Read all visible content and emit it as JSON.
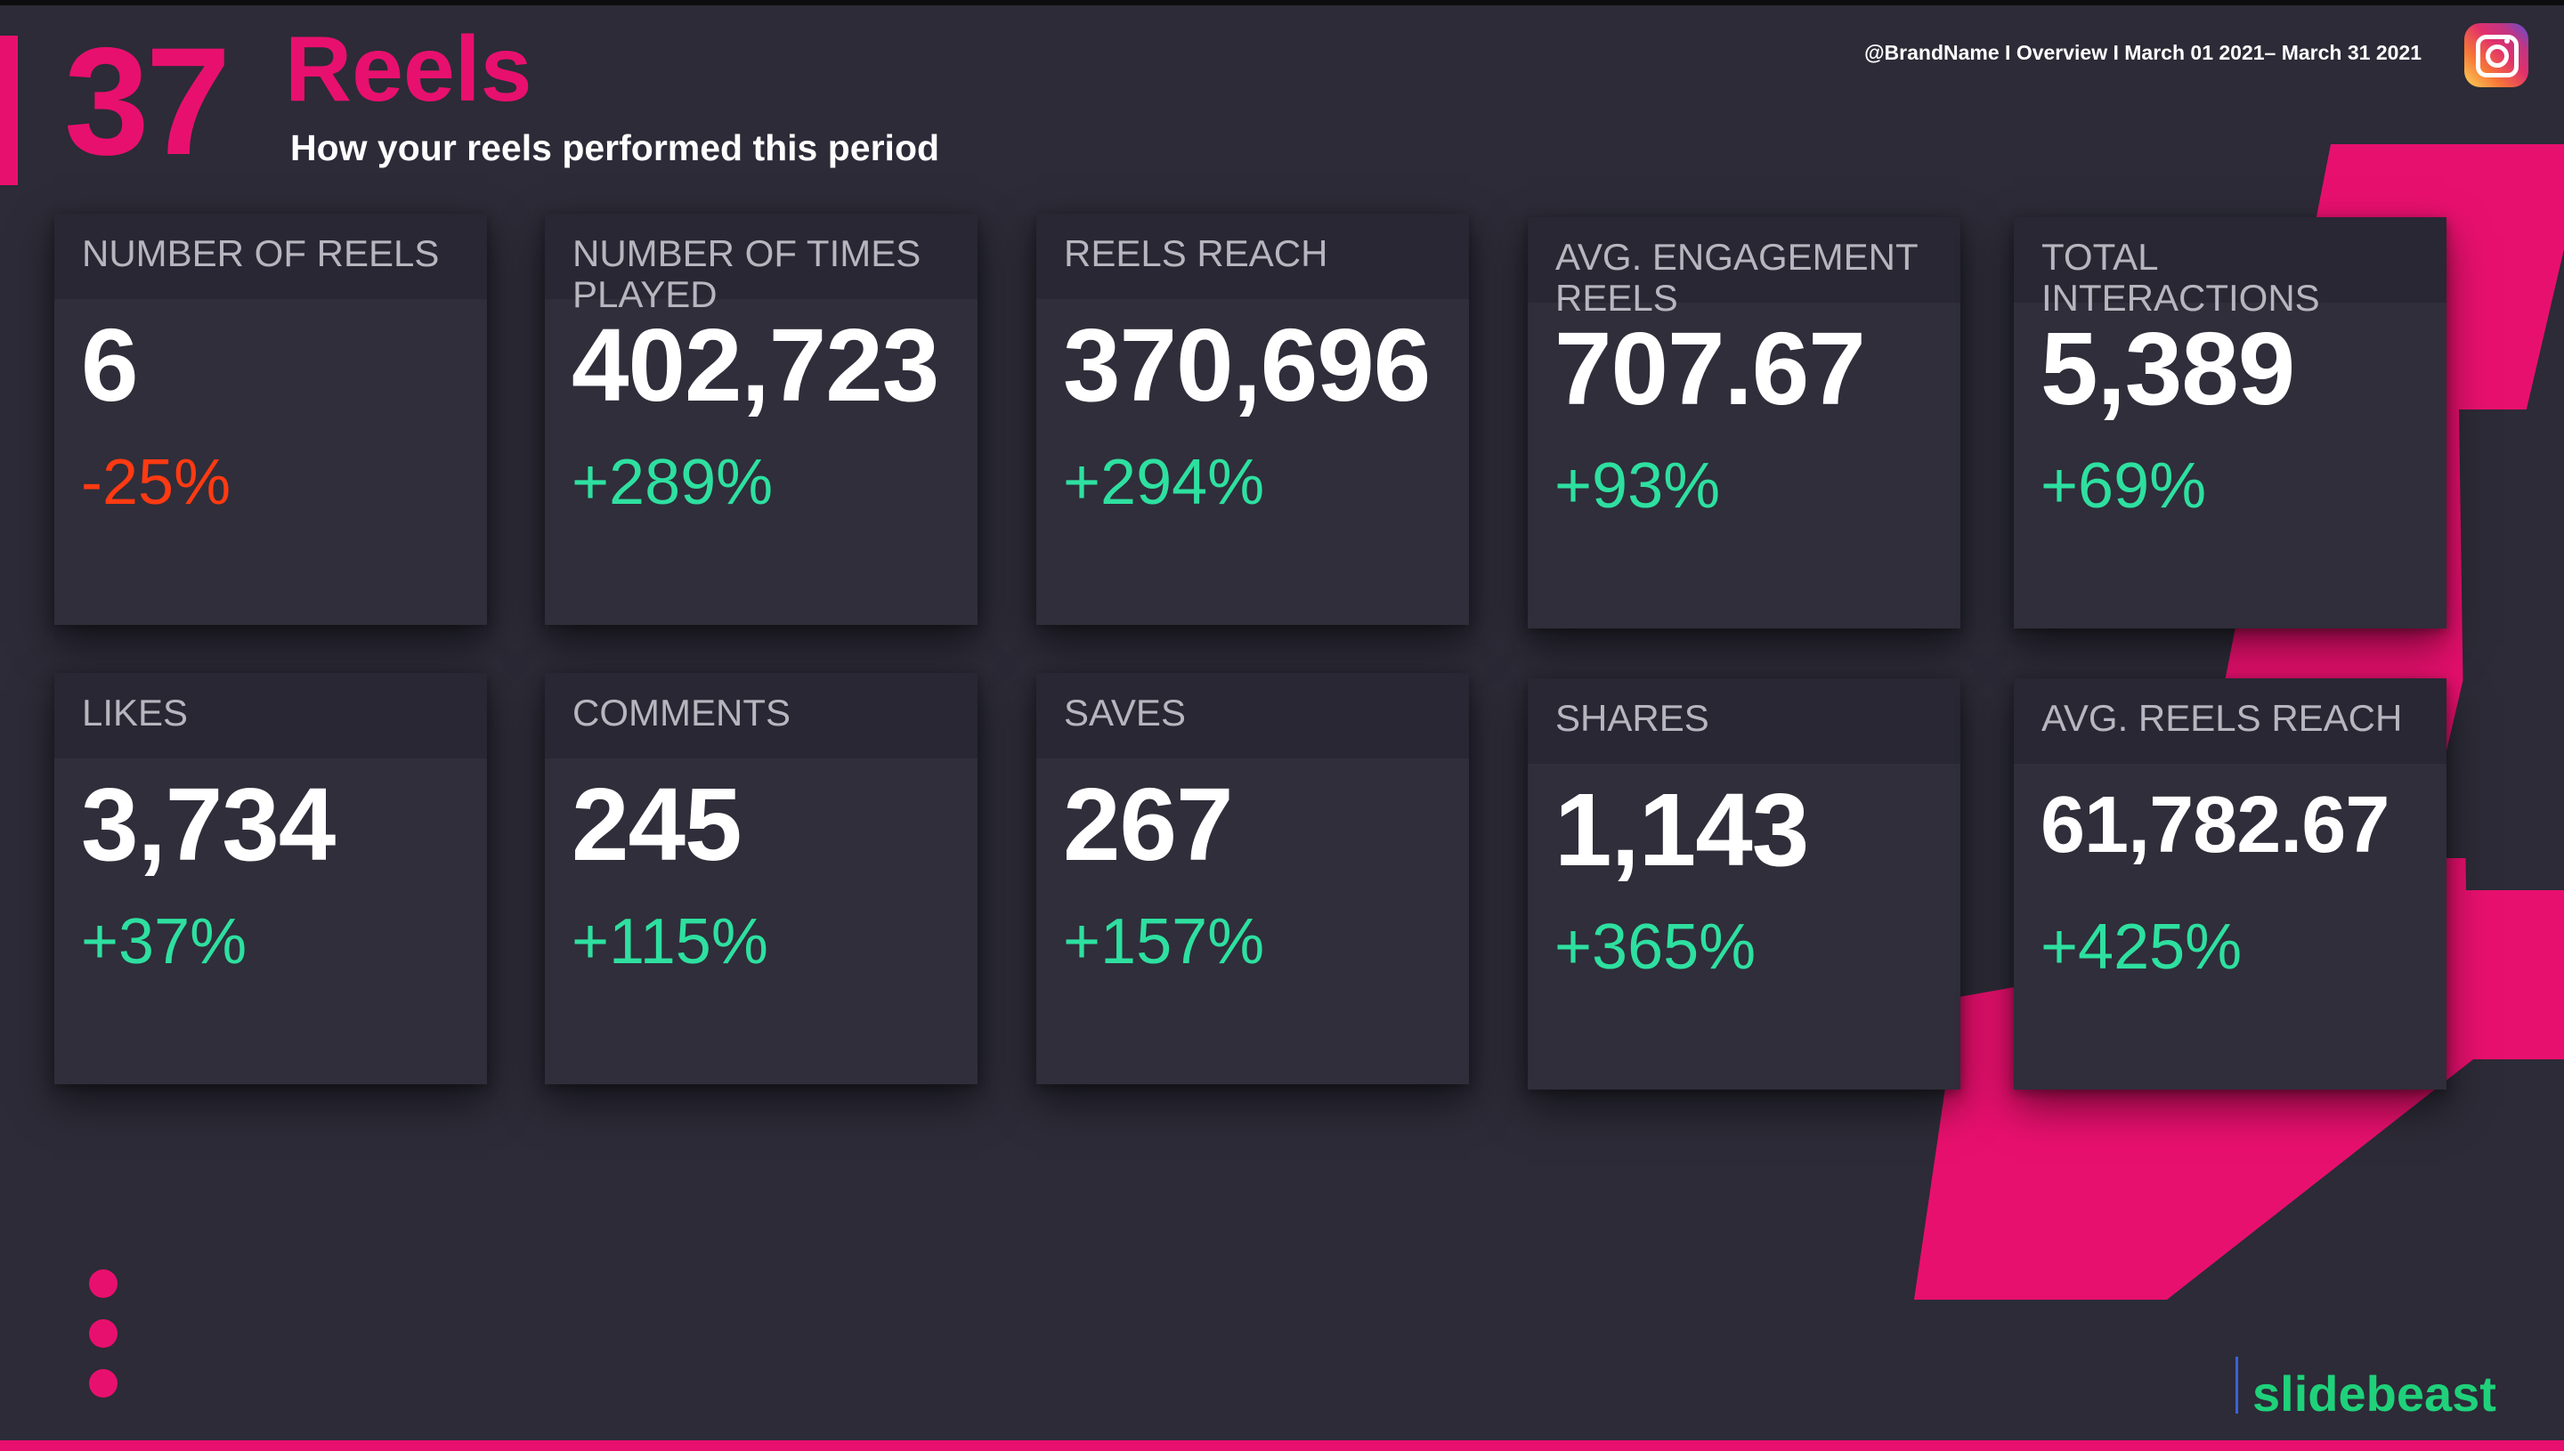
{
  "header": {
    "page_number": "37",
    "title": "Reels",
    "subtitle": "How your reels performed this period",
    "info": "@BrandName I Overview I March 01 2021– March 31 2021",
    "platform_icon": "instagram-icon"
  },
  "colors": {
    "accent": "#e8106e",
    "background": "#2c2b37",
    "positive": "#2ee0a0",
    "negative": "#ff3a12",
    "brand_logo": "#1fd17a"
  },
  "metrics": [
    {
      "label": "NUMBER OF REELS",
      "value": "6",
      "change": "-25%",
      "trend": "down"
    },
    {
      "label": "NUMBER OF TIMES PLAYED",
      "value": "402,723",
      "change": "+289%",
      "trend": "up"
    },
    {
      "label": "REELS REACH",
      "value": "370,696",
      "change": "+294%",
      "trend": "up"
    },
    {
      "label": "AVG. ENGAGEMENT REELS",
      "value": "707.67",
      "change": "+93%",
      "trend": "up"
    },
    {
      "label": "TOTAL INTERACTIONS",
      "value": "5,389",
      "change": "+69%",
      "trend": "up"
    },
    {
      "label": "LIKES",
      "value": "3,734",
      "change": "+37%",
      "trend": "up"
    },
    {
      "label": "COMMENTS",
      "value": "245",
      "change": "+115%",
      "trend": "up"
    },
    {
      "label": "SAVES",
      "value": "267",
      "change": "+157%",
      "trend": "up"
    },
    {
      "label": "SHARES",
      "value": "1,143",
      "change": "+365%",
      "trend": "up"
    },
    {
      "label": "AVG. REELS REACH",
      "value": "61,782.67",
      "change": "+425%",
      "trend": "up"
    }
  ],
  "footer": {
    "menu_icon": "vertical-dots-icon",
    "brand": "slidebeast"
  }
}
